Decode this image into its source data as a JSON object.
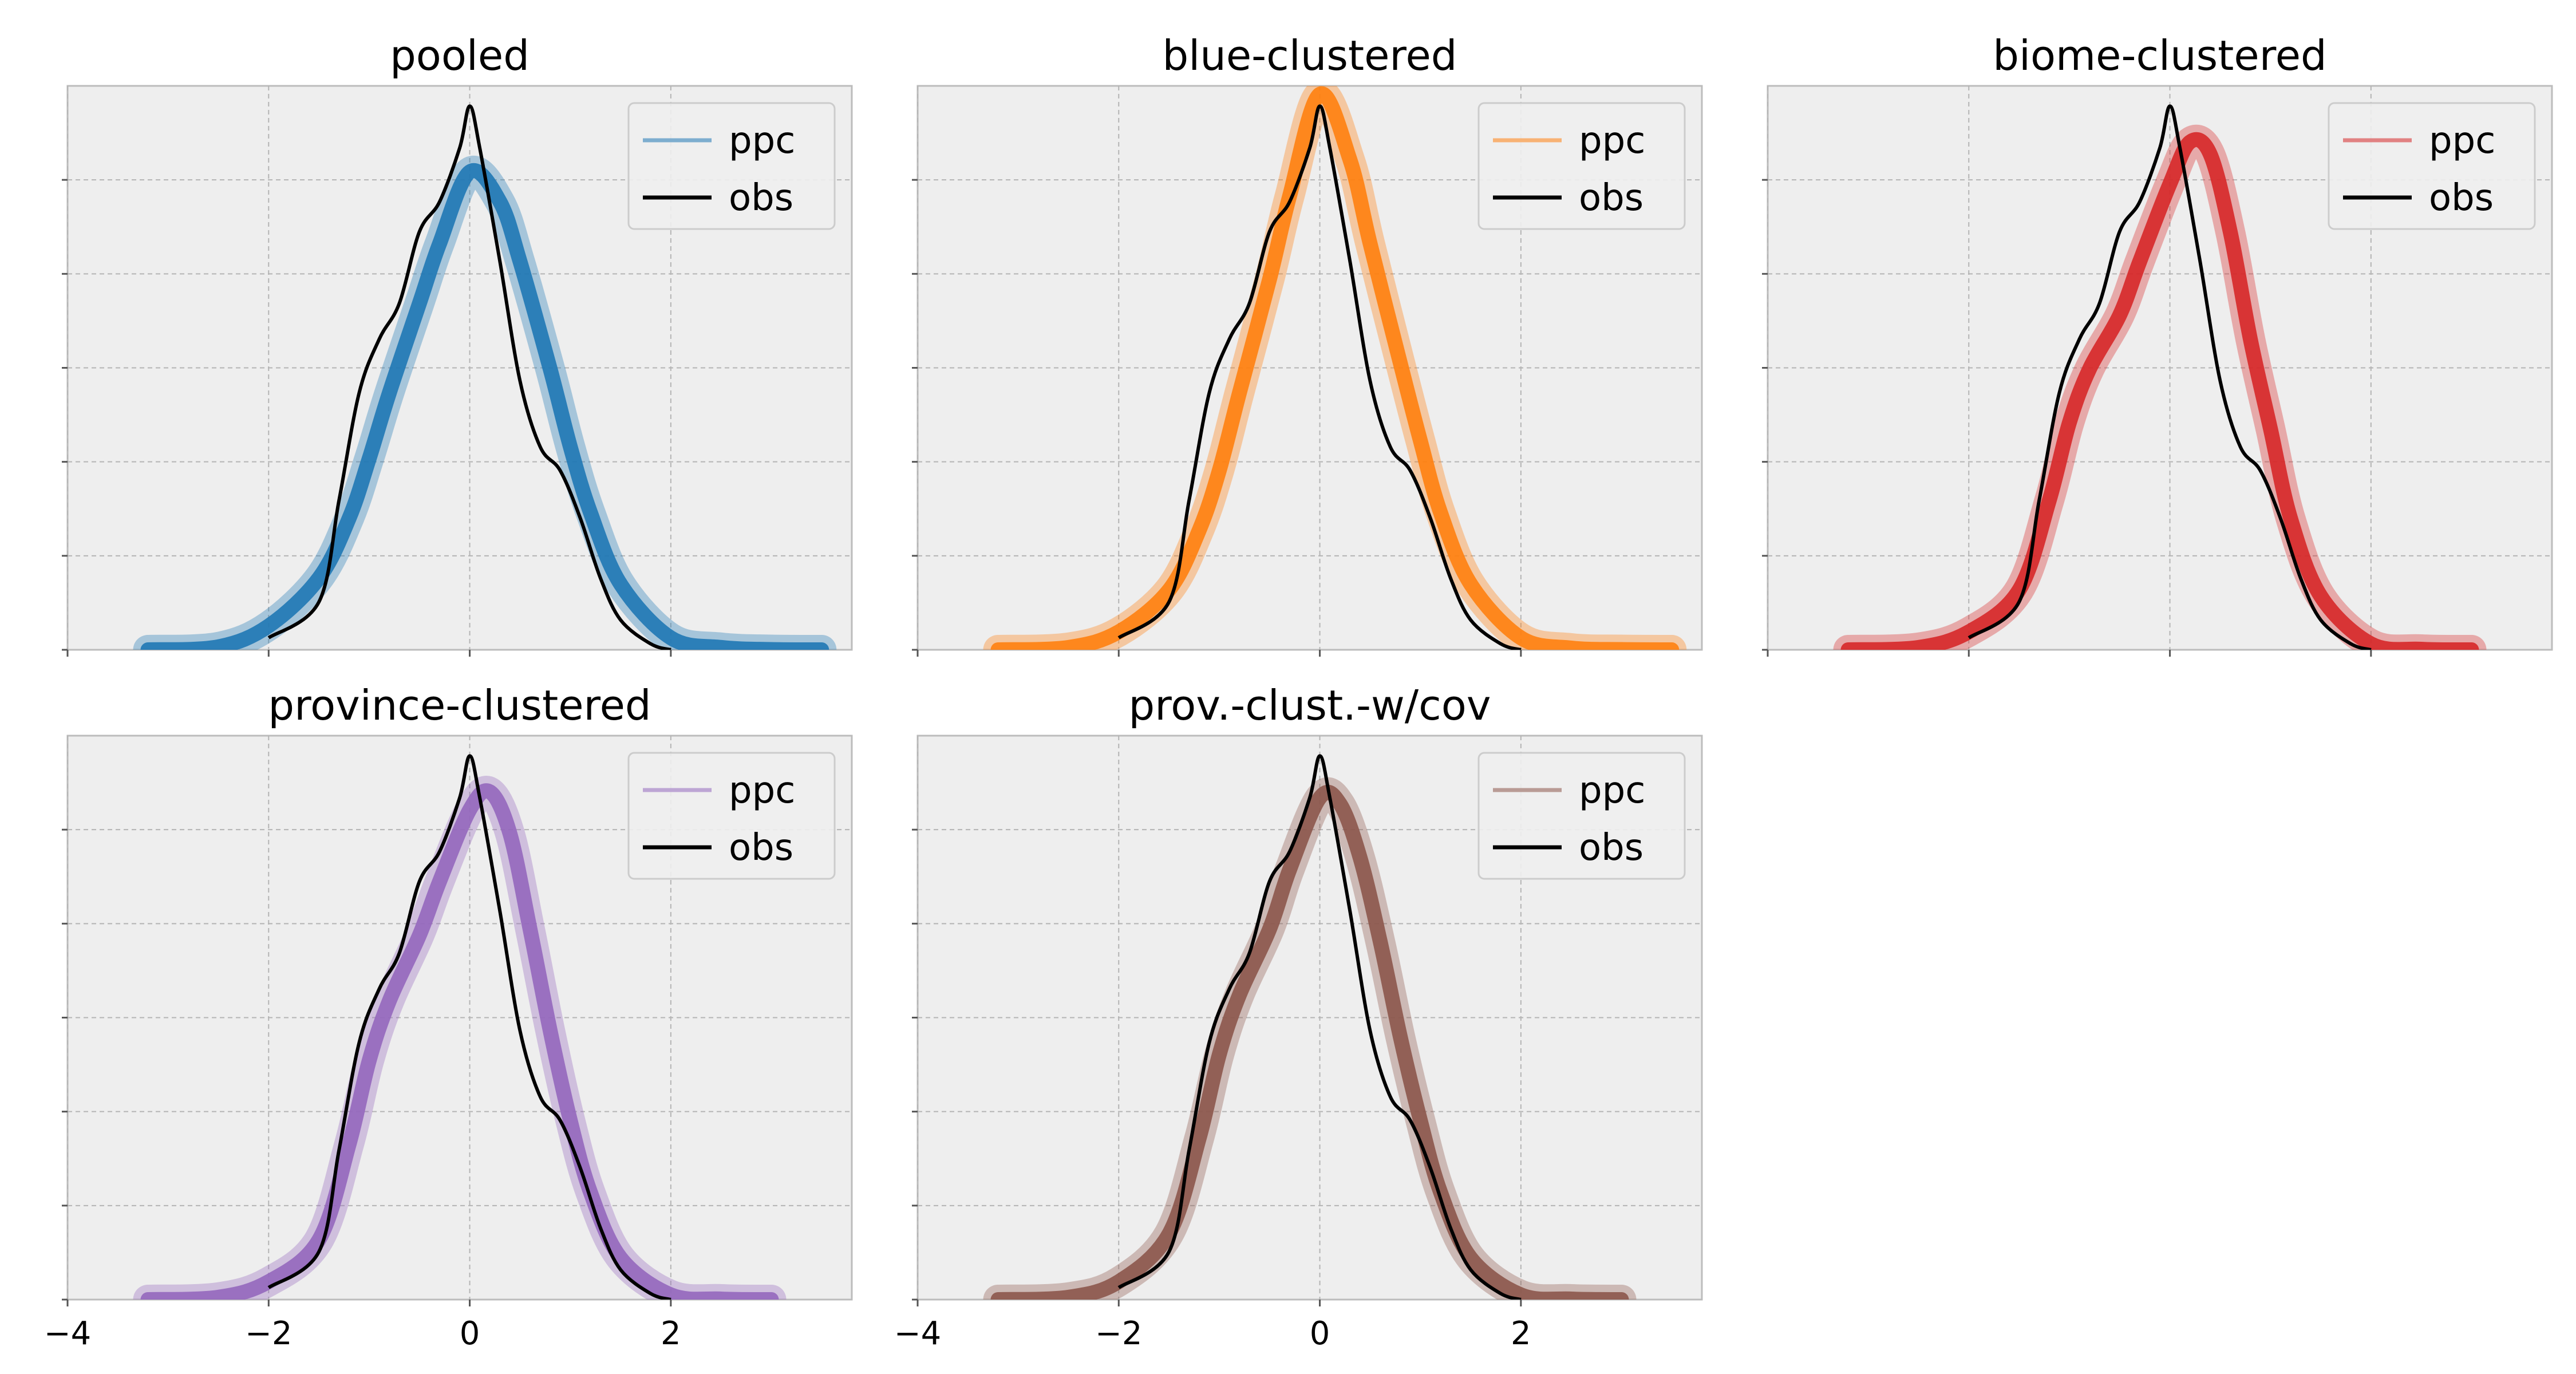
{
  "chart_data": [
    {
      "type": "line",
      "title": "pooled",
      "xlim": [
        -4.0,
        3.8
      ],
      "xticks": [
        -4,
        -2,
        0,
        2
      ],
      "xtick_labels_visible": false,
      "grid": true,
      "legend": {
        "position": "top-right",
        "entries": [
          "ppc",
          "obs"
        ]
      },
      "series": [
        {
          "name": "ppc",
          "color": "#1f77b4",
          "x": [
            -3.2,
            -2.5,
            -2.0,
            -1.5,
            -1.2,
            -1.0,
            -0.8,
            -0.5,
            -0.3,
            0.0,
            0.3,
            0.5,
            0.8,
            1.0,
            1.2,
            1.5,
            2.0,
            2.5,
            3.0,
            3.5
          ],
          "y": [
            0.0,
            0.005,
            0.04,
            0.12,
            0.22,
            0.32,
            0.43,
            0.58,
            0.68,
            0.8,
            0.75,
            0.65,
            0.47,
            0.34,
            0.23,
            0.11,
            0.02,
            0.004,
            0.0005,
            0.0
          ]
        },
        {
          "name": "obs",
          "color": "#000000",
          "x": [
            -2.0,
            -1.5,
            -1.3,
            -1.1,
            -0.9,
            -0.7,
            -0.5,
            -0.3,
            -0.1,
            0.0,
            0.1,
            0.3,
            0.5,
            0.7,
            0.9,
            1.1,
            1.3,
            1.5,
            1.8,
            2.0
          ],
          "y": [
            0.02,
            0.08,
            0.25,
            0.43,
            0.52,
            0.58,
            0.7,
            0.75,
            0.84,
            0.91,
            0.84,
            0.65,
            0.45,
            0.34,
            0.3,
            0.22,
            0.12,
            0.05,
            0.01,
            0.0
          ]
        }
      ]
    },
    {
      "type": "line",
      "title": "blue-clustered",
      "xlim": [
        -4.0,
        3.8
      ],
      "xticks": [
        -4,
        -2,
        0,
        2
      ],
      "xtick_labels_visible": false,
      "grid": true,
      "legend": {
        "position": "top-right",
        "entries": [
          "ppc",
          "obs"
        ]
      },
      "series": [
        {
          "name": "ppc",
          "color": "#ff7f0e",
          "x": [
            -3.2,
            -2.5,
            -2.0,
            -1.5,
            -1.2,
            -1.0,
            -0.8,
            -0.5,
            -0.3,
            0.0,
            0.3,
            0.5,
            0.8,
            1.0,
            1.2,
            1.5,
            2.0,
            2.5,
            3.0,
            3.5
          ],
          "y": [
            0.0,
            0.004,
            0.03,
            0.1,
            0.2,
            0.3,
            0.43,
            0.62,
            0.76,
            0.93,
            0.82,
            0.68,
            0.48,
            0.35,
            0.23,
            0.11,
            0.02,
            0.003,
            0.0005,
            0.0
          ]
        },
        {
          "name": "obs",
          "color": "#000000",
          "x": [
            -2.0,
            -1.5,
            -1.3,
            -1.1,
            -0.9,
            -0.7,
            -0.5,
            -0.3,
            -0.1,
            0.0,
            0.1,
            0.3,
            0.5,
            0.7,
            0.9,
            1.1,
            1.3,
            1.5,
            1.8,
            2.0
          ],
          "y": [
            0.02,
            0.08,
            0.25,
            0.43,
            0.52,
            0.58,
            0.7,
            0.75,
            0.84,
            0.91,
            0.84,
            0.65,
            0.45,
            0.34,
            0.3,
            0.22,
            0.12,
            0.05,
            0.01,
            0.0
          ]
        }
      ]
    },
    {
      "type": "line",
      "title": "biome-clustered",
      "xlim": [
        -4.0,
        3.8
      ],
      "xticks": [
        -4,
        -2,
        0,
        2
      ],
      "xtick_labels_visible": false,
      "grid": true,
      "legend": {
        "position": "top-right",
        "entries": [
          "ppc",
          "obs"
        ]
      },
      "series": [
        {
          "name": "ppc",
          "color": "#d62728",
          "x": [
            -3.2,
            -2.5,
            -2.0,
            -1.5,
            -1.2,
            -1.0,
            -0.8,
            -0.5,
            -0.3,
            0.0,
            0.2,
            0.4,
            0.6,
            0.8,
            1.0,
            1.2,
            1.5,
            2.0,
            2.5,
            3.0
          ],
          "y": [
            0.0,
            0.004,
            0.03,
            0.1,
            0.25,
            0.38,
            0.47,
            0.56,
            0.65,
            0.78,
            0.85,
            0.83,
            0.7,
            0.52,
            0.37,
            0.22,
            0.09,
            0.01,
            0.001,
            0.0
          ]
        },
        {
          "name": "obs",
          "color": "#000000",
          "x": [
            -2.0,
            -1.5,
            -1.3,
            -1.1,
            -0.9,
            -0.7,
            -0.5,
            -0.3,
            -0.1,
            0.0,
            0.1,
            0.3,
            0.5,
            0.7,
            0.9,
            1.1,
            1.3,
            1.5,
            1.8,
            2.0
          ],
          "y": [
            0.02,
            0.08,
            0.25,
            0.43,
            0.52,
            0.58,
            0.7,
            0.75,
            0.84,
            0.91,
            0.84,
            0.65,
            0.45,
            0.34,
            0.3,
            0.22,
            0.12,
            0.05,
            0.01,
            0.0
          ]
        }
      ]
    },
    {
      "type": "line",
      "title": "province-clustered",
      "xlim": [
        -4.0,
        3.8
      ],
      "xticks": [
        -4,
        -2,
        0,
        2
      ],
      "xtick_labels_visible": true,
      "grid": true,
      "legend": {
        "position": "top-right",
        "entries": [
          "ppc",
          "obs"
        ]
      },
      "series": [
        {
          "name": "ppc",
          "color": "#9467bd",
          "x": [
            -3.2,
            -2.5,
            -2.0,
            -1.5,
            -1.2,
            -1.0,
            -0.8,
            -0.5,
            -0.3,
            0.0,
            0.2,
            0.4,
            0.6,
            0.8,
            1.0,
            1.2,
            1.5,
            2.0,
            2.5,
            3.0
          ],
          "y": [
            0.0,
            0.004,
            0.03,
            0.1,
            0.26,
            0.4,
            0.5,
            0.61,
            0.7,
            0.82,
            0.85,
            0.78,
            0.62,
            0.45,
            0.3,
            0.18,
            0.07,
            0.008,
            0.001,
            0.0
          ]
        },
        {
          "name": "obs",
          "color": "#000000",
          "x": [
            -2.0,
            -1.5,
            -1.3,
            -1.1,
            -0.9,
            -0.7,
            -0.5,
            -0.3,
            -0.1,
            0.0,
            0.1,
            0.3,
            0.5,
            0.7,
            0.9,
            1.1,
            1.3,
            1.5,
            1.8,
            2.0
          ],
          "y": [
            0.02,
            0.08,
            0.25,
            0.43,
            0.52,
            0.58,
            0.7,
            0.75,
            0.84,
            0.91,
            0.84,
            0.65,
            0.45,
            0.34,
            0.3,
            0.22,
            0.12,
            0.05,
            0.01,
            0.0
          ]
        }
      ]
    },
    {
      "type": "line",
      "title": "prov.-clust.-w/cov",
      "xlim": [
        -4.0,
        3.8
      ],
      "xticks": [
        -4,
        -2,
        0,
        2
      ],
      "xtick_labels_visible": true,
      "grid": true,
      "legend": {
        "position": "top-right",
        "entries": [
          "ppc",
          "obs"
        ]
      },
      "series": [
        {
          "name": "ppc",
          "color": "#8c564b",
          "x": [
            -3.2,
            -2.5,
            -2.0,
            -1.5,
            -1.2,
            -1.0,
            -0.8,
            -0.5,
            -0.3,
            0.0,
            0.2,
            0.4,
            0.6,
            0.8,
            1.0,
            1.2,
            1.5,
            2.0,
            2.5,
            3.0
          ],
          "y": [
            0.0,
            0.004,
            0.03,
            0.11,
            0.27,
            0.41,
            0.51,
            0.62,
            0.72,
            0.84,
            0.83,
            0.74,
            0.6,
            0.44,
            0.3,
            0.18,
            0.07,
            0.008,
            0.001,
            0.0
          ]
        },
        {
          "name": "obs",
          "color": "#000000",
          "x": [
            -2.0,
            -1.5,
            -1.3,
            -1.1,
            -0.9,
            -0.7,
            -0.5,
            -0.3,
            -0.1,
            0.0,
            0.1,
            0.3,
            0.5,
            0.7,
            0.9,
            1.1,
            1.3,
            1.5,
            1.8,
            2.0
          ],
          "y": [
            0.02,
            0.08,
            0.25,
            0.43,
            0.52,
            0.58,
            0.7,
            0.75,
            0.84,
            0.91,
            0.84,
            0.65,
            0.45,
            0.34,
            0.3,
            0.22,
            0.12,
            0.05,
            0.01,
            0.0
          ]
        }
      ]
    }
  ]
}
